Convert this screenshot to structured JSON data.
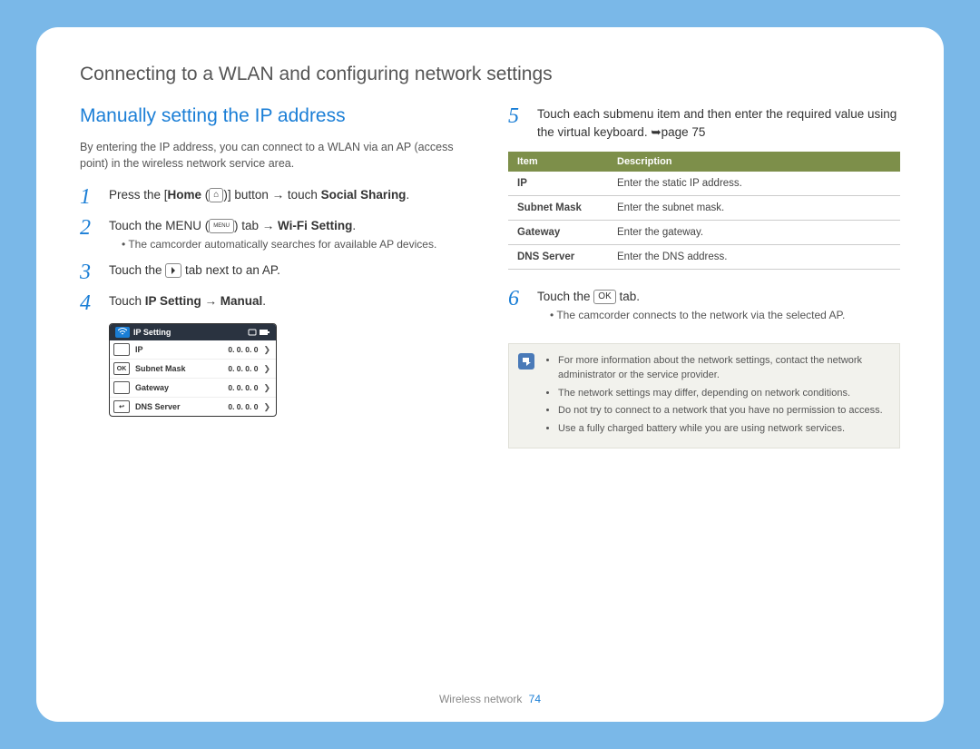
{
  "page_title": "Connecting to a WLAN and configuring network settings",
  "section_heading": "Manually setting the IP address",
  "intro": "By entering the IP address, you can connect to a WLAN via an AP (access point) in the wireless network service area.",
  "steps": {
    "s1": {
      "num": "1",
      "pre": "Press the [",
      "bold1": "Home",
      "mid": " (",
      "post": ")] button → touch ",
      "bold2": "Social Sharing",
      "end": "."
    },
    "s2": {
      "num": "2",
      "pre": "Touch the MENU (",
      "post": ") tab → ",
      "bold": "Wi-Fi Setting",
      "end": ".",
      "sub": "The camcorder automatically searches for available AP devices."
    },
    "s3": {
      "num": "3",
      "pre": "Touch the ",
      "post": " tab next to an AP."
    },
    "s4": {
      "num": "4",
      "pre": "Touch ",
      "bold": "IP Setting → Manual",
      "end": "."
    },
    "s5": {
      "num": "5",
      "text": "Touch each submenu item and then enter the required value using the virtual keyboard. ➥page 75"
    },
    "s6": {
      "num": "6",
      "pre": "Touch the ",
      "post": " tab.",
      "sub": "The camcorder connects to the network via the selected AP."
    }
  },
  "icons": {
    "menu_label": "MENU",
    "ok_label": "OK",
    "home_glyph": "⌂",
    "arrow_glyph": "❯"
  },
  "device": {
    "title": "IP Setting",
    "rows": [
      {
        "side": "",
        "label": "IP",
        "value": "0. 0. 0. 0"
      },
      {
        "side": "OK",
        "label": "Subnet Mask",
        "value": "0. 0. 0. 0"
      },
      {
        "side": "",
        "label": "Gateway",
        "value": "0. 0. 0. 0"
      },
      {
        "side": "↩",
        "label": "DNS Server",
        "value": "0. 0. 0. 0"
      }
    ]
  },
  "table": {
    "head_item": "Item",
    "head_desc": "Description",
    "rows": [
      {
        "item": "IP",
        "desc": "Enter the static IP address."
      },
      {
        "item": "Subnet Mask",
        "desc": "Enter the subnet mask."
      },
      {
        "item": "Gateway",
        "desc": "Enter the gateway."
      },
      {
        "item": "DNS Server",
        "desc": "Enter the DNS address."
      }
    ]
  },
  "notes": [
    "For more information about the network settings, contact the network administrator or the service provider.",
    "The network settings may differ, depending on network conditions.",
    "Do not try to connect to a network that you have no permission to access.",
    "Use a fully charged battery while you are using network services."
  ],
  "footer": {
    "section": "Wireless network",
    "page": "74"
  }
}
